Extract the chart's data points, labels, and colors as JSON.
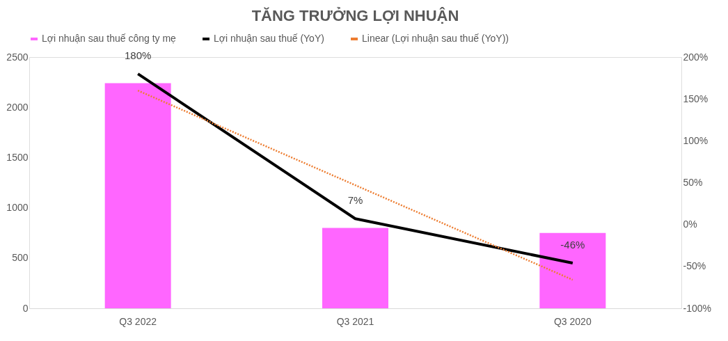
{
  "chart_data": {
    "type": "bar",
    "title": "TĂNG TRƯỞNG LỢI NHUẬN",
    "categories": [
      "Q3 2022",
      "Q3 2021",
      "Q3 2020"
    ],
    "series": [
      {
        "name": "Lợi nhuận sau thuế công ty mẹ",
        "color": "#ff66ff",
        "values": [
          2240,
          800,
          750
        ]
      },
      {
        "name": "Lợi nhuận sau thuế (YoY)",
        "type": "line",
        "axis": "y2",
        "color": "#000000",
        "line_style": "solid",
        "values": [
          180,
          7,
          -46
        ],
        "value_labels": [
          "180%",
          "7%",
          "-46%"
        ]
      },
      {
        "name": "Linear (Lợi nhuận sau thuế (YoY))",
        "type": "line",
        "axis": "y2",
        "color": "#ed7d31",
        "line_style": "dotted",
        "values": [
          160,
          47,
          -66
        ]
      }
    ],
    "ylim": [
      0,
      2500
    ],
    "yticks": [
      0,
      500,
      1000,
      1500,
      2000,
      2500
    ],
    "y2lim": [
      -100,
      200
    ],
    "y2ticks": [
      {
        "value": -100,
        "label": "-100%"
      },
      {
        "value": -50,
        "label": "-50%"
      },
      {
        "value": 0,
        "label": "0%"
      },
      {
        "value": 50,
        "label": "50%"
      },
      {
        "value": 100,
        "label": "100%"
      },
      {
        "value": 150,
        "label": "150%"
      },
      {
        "value": 200,
        "label": "200%"
      }
    ],
    "grid": false,
    "legend": "top"
  }
}
